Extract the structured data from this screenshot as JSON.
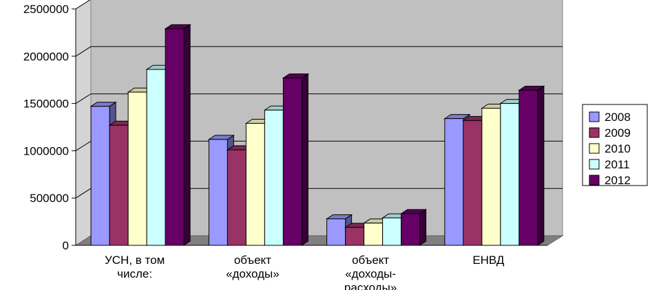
{
  "chart_data": {
    "type": "bar",
    "title": "",
    "xlabel": "",
    "ylabel": "",
    "categories": [
      [
        "УСН, в том",
        "числе:"
      ],
      [
        "объект",
        "«доходы»"
      ],
      [
        "объект",
        "«доходы-",
        "расходы»"
      ],
      [
        "ЕНВД"
      ]
    ],
    "series": [
      {
        "name": "2008",
        "color": "#9999ff",
        "values": [
          1470000,
          1120000,
          280000,
          1340000
        ]
      },
      {
        "name": "2009",
        "color": "#993366",
        "values": [
          1270000,
          1010000,
          190000,
          1320000
        ]
      },
      {
        "name": "2010",
        "color": "#ffffcc",
        "values": [
          1620000,
          1290000,
          235000,
          1450000
        ]
      },
      {
        "name": "2011",
        "color": "#ccffff",
        "values": [
          1860000,
          1430000,
          290000,
          1500000
        ]
      },
      {
        "name": "2012",
        "color": "#660066",
        "values": [
          2290000,
          1770000,
          335000,
          1640000
        ]
      }
    ],
    "ylim": [
      0,
      2500000
    ],
    "yticks": [
      "0",
      "500000",
      "1000000",
      "1500000",
      "2000000",
      "2500000"
    ],
    "grid": true,
    "legend_position": "right",
    "style": "3d-clustered-bar",
    "wall_color": "#c0c0c0",
    "floor_color": "#808080"
  }
}
